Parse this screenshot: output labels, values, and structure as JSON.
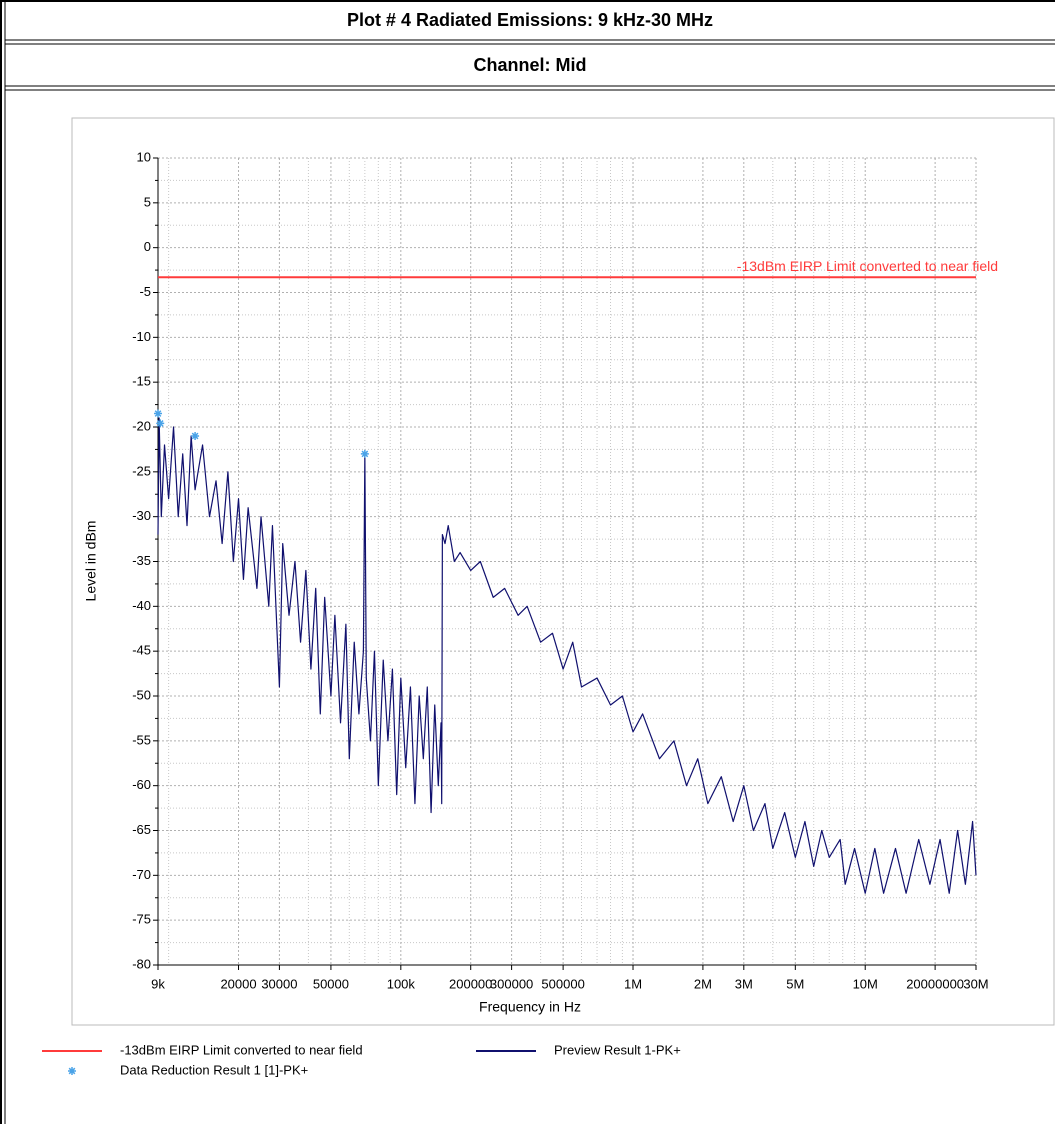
{
  "chart_data": {
    "type": "line",
    "title": "Plot # 4 Radiated Emissions: 9 kHz-30 MHz",
    "subtitle": "Channel: Mid",
    "xlabel": "Frequency in Hz",
    "ylabel": "Level in dBm",
    "xscale": "log",
    "grid": true,
    "xlim": [
      9000,
      30000000
    ],
    "ylim": [
      -80,
      10
    ],
    "xticks": [
      {
        "value": 9000,
        "label": "9k"
      },
      20000,
      30000,
      50000,
      {
        "value": 100000,
        "label": "100k"
      },
      200000,
      300000,
      500000,
      {
        "value": 1000000,
        "label": "1M"
      },
      {
        "value": 2000000,
        "label": "2M"
      },
      {
        "value": 3000000,
        "label": "3M"
      },
      {
        "value": 5000000,
        "label": "5M"
      },
      {
        "value": 10000000,
        "label": "10M"
      },
      20000000,
      {
        "value": 30000000,
        "label": "30M"
      }
    ],
    "xticks_minor": [
      10000,
      40000,
      60000,
      70000,
      80000,
      90000,
      400000,
      600000,
      700000,
      800000,
      900000,
      4000000,
      6000000,
      7000000,
      8000000,
      9000000
    ],
    "yticks": [
      10,
      5,
      0,
      -5,
      -10,
      -15,
      -20,
      -25,
      -30,
      -35,
      -40,
      -45,
      -50,
      -55,
      -60,
      -65,
      -70,
      -75,
      -80
    ],
    "yticks_minor": [
      7.5,
      2.5,
      -2.5,
      -7.5,
      -12.5,
      -17.5,
      -22.5,
      -27.5,
      -32.5,
      -37.5,
      -42.5,
      -47.5,
      -52.5,
      -57.5,
      -62.5,
      -67.5,
      -72.5,
      -77.5
    ],
    "annotation": "-13dBm EIRP Limit converted to near field",
    "series": [
      {
        "name": "-13dBm EIRP Limit converted to near field",
        "type": "line",
        "color": "#ff3b3b",
        "x": [
          9000,
          30000000
        ],
        "values": [
          -3.3,
          -3.3
        ]
      },
      {
        "name": "Preview Result 1-PK+",
        "type": "line",
        "color": "#10106e",
        "x": [
          9000,
          9100,
          9300,
          9600,
          10000,
          10500,
          11000,
          11500,
          12000,
          12500,
          13000,
          14000,
          15000,
          16000,
          17000,
          18000,
          19000,
          20000,
          21000,
          22000,
          24000,
          25000,
          27000,
          28000,
          30000,
          31000,
          33000,
          35000,
          37000,
          39000,
          41000,
          43000,
          45000,
          47000,
          50000,
          52000,
          55000,
          58000,
          60000,
          63000,
          66000,
          69000,
          70000,
          71000,
          74000,
          77000,
          80000,
          84000,
          88000,
          92000,
          96000,
          100000,
          105000,
          110000,
          115000,
          120000,
          125000,
          130000,
          135000,
          140000,
          145000,
          149000,
          150000,
          151000,
          155000,
          160000,
          170000,
          180000,
          200000,
          220000,
          250000,
          280000,
          320000,
          350000,
          400000,
          450000,
          500000,
          550000,
          600000,
          700000,
          800000,
          900000,
          1000000,
          1100000,
          1300000,
          1500000,
          1700000,
          1900000,
          2100000,
          2400000,
          2700000,
          3000000,
          3300000,
          3700000,
          4000000,
          4500000,
          5000000,
          5500000,
          6000000,
          6500000,
          7000000,
          7800000,
          8200000,
          9000000,
          10000000,
          11000000,
          12000000,
          13500000,
          15000000,
          17000000,
          19000000,
          21000000,
          23000000,
          25000000,
          27000000,
          29000000,
          30000000
        ],
        "values": [
          -32,
          -19,
          -30,
          -22,
          -28,
          -20,
          -30,
          -23,
          -31,
          -21,
          -27,
          -22,
          -30,
          -26,
          -33,
          -25,
          -35,
          -28,
          -37,
          -29,
          -38,
          -30,
          -40,
          -31,
          -49,
          -33,
          -41,
          -35,
          -44,
          -36,
          -47,
          -38,
          -52,
          -39,
          -50,
          -41,
          -53,
          -42,
          -57,
          -44,
          -52,
          -45,
          -23,
          -48,
          -55,
          -45,
          -60,
          -46,
          -55,
          -47,
          -61,
          -48,
          -58,
          -49,
          -62,
          -50,
          -57,
          -49,
          -63,
          -51,
          -60,
          -53,
          -62,
          -32,
          -33,
          -31,
          -35,
          -34,
          -36,
          -35,
          -39,
          -38,
          -41,
          -40,
          -44,
          -43,
          -47,
          -44,
          -49,
          -48,
          -51,
          -50,
          -54,
          -52,
          -57,
          -55,
          -60,
          -57,
          -62,
          -59,
          -64,
          -60,
          -65,
          -62,
          -67,
          -63,
          -68,
          -64,
          -69,
          -65,
          -68,
          -66,
          -71,
          -67,
          -72,
          -67,
          -72,
          -67,
          -72,
          -66,
          -71,
          -66,
          -72,
          -65,
          -71,
          -64,
          -70
        ]
      },
      {
        "name": "Data Reduction Result 1 [1]-PK+",
        "type": "scatter",
        "color": "#4aa3e8",
        "x": [
          9000,
          9200,
          13000,
          70000
        ],
        "values": [
          -18.5,
          -19.6,
          -21,
          -23
        ]
      }
    ]
  }
}
